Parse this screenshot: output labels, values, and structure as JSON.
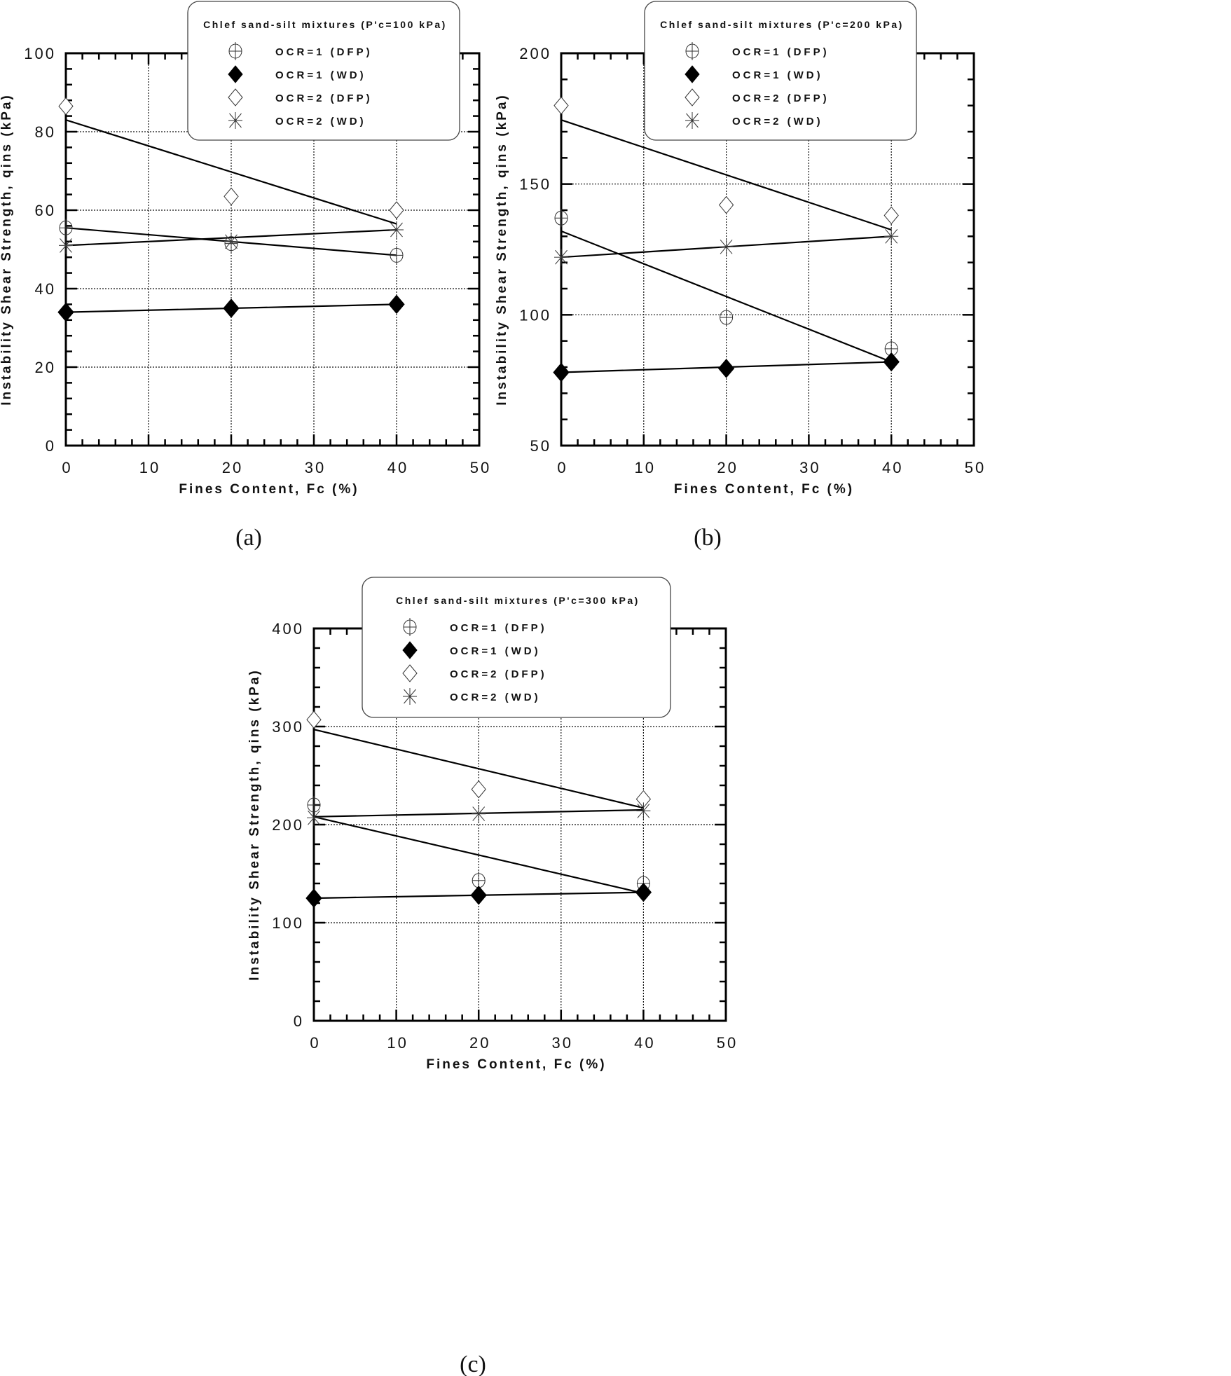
{
  "chart_data": [
    {
      "type": "scatter",
      "caption": "(a)",
      "legend_title": "Chlef sand-silt mixtures (P'c=100 kPa)",
      "legend_placement": "top-center",
      "xlabel": "Fines Content, Fc (%)",
      "ylabel": "Instability Shear Strength, qins (kPa)",
      "xlim": [
        0,
        50
      ],
      "ylim": [
        0,
        100
      ],
      "x_ticks": [
        0,
        10,
        20,
        30,
        40,
        50
      ],
      "y_ticks": [
        0,
        20,
        40,
        60,
        80,
        100
      ],
      "x_tick_labels": [
        "0",
        "10",
        "20",
        "30",
        "40",
        "50"
      ],
      "y_tick_labels": [
        "0",
        "20",
        "40",
        "60",
        "80",
        "100"
      ],
      "grid": true,
      "series": [
        {
          "name": "OCR=1 (DFP)",
          "marker": "circle-cross",
          "x": [
            0,
            20,
            40
          ],
          "y": [
            55.5,
            51.5,
            48.5
          ],
          "trend": [
            55.5,
            48.5
          ]
        },
        {
          "name": "OCR=1 (WD)",
          "marker": "filled-diamond",
          "x": [
            0,
            20,
            40
          ],
          "y": [
            34,
            35,
            36
          ],
          "trend": [
            34,
            36
          ]
        },
        {
          "name": "OCR=2 (DFP)",
          "marker": "open-diamond",
          "x": [
            0,
            20,
            40
          ],
          "y": [
            86.5,
            63.5,
            60
          ],
          "trend": [
            83,
            56.5
          ]
        },
        {
          "name": "OCR=2 (WD)",
          "marker": "asterisk",
          "x": [
            0,
            20,
            40
          ],
          "y": [
            51,
            52,
            55
          ],
          "trend": [
            51,
            55
          ]
        }
      ]
    },
    {
      "type": "scatter",
      "caption": "(b)",
      "legend_title": "Chlef sand-silt mixtures (P'c=200 kPa)",
      "legend_placement": "top-center",
      "xlabel": "Fines Content, Fc (%)",
      "ylabel": "Instability Shear Strength, qins (kPa)",
      "xlim": [
        0,
        50
      ],
      "ylim": [
        50,
        200
      ],
      "x_ticks": [
        0,
        10,
        20,
        30,
        40,
        50
      ],
      "y_ticks": [
        50,
        100,
        150,
        200
      ],
      "x_tick_labels": [
        "0",
        "10",
        "20",
        "30",
        "40",
        "50"
      ],
      "y_tick_labels": [
        "50",
        "100",
        "150",
        "200"
      ],
      "grid": true,
      "series": [
        {
          "name": "OCR=1 (DFP)",
          "marker": "circle-cross",
          "x": [
            0,
            20,
            40
          ],
          "y": [
            137,
            99,
            87
          ],
          "trend": [
            132,
            82
          ]
        },
        {
          "name": "OCR=1 (WD)",
          "marker": "filled-diamond",
          "x": [
            0,
            20,
            40
          ],
          "y": [
            78,
            79.5,
            82
          ],
          "trend": [
            78,
            82
          ]
        },
        {
          "name": "OCR=2 (DFP)",
          "marker": "open-diamond",
          "x": [
            0,
            20,
            40
          ],
          "y": [
            180,
            142,
            138
          ],
          "trend": [
            174.5,
            132.5
          ]
        },
        {
          "name": "OCR=2 (WD)",
          "marker": "asterisk",
          "x": [
            0,
            20,
            40
          ],
          "y": [
            122,
            126,
            130
          ],
          "trend": [
            122,
            130
          ]
        }
      ]
    },
    {
      "type": "scatter",
      "caption": "(c)",
      "legend_title": "Chlef sand-silt mixtures (P'c=300 kPa)",
      "legend_placement": "top-center",
      "xlabel": "Fines Content, Fc (%)",
      "ylabel": "Instability Shear Strength, qins (kPa)",
      "xlim": [
        0,
        50
      ],
      "ylim": [
        0,
        400
      ],
      "x_ticks": [
        0,
        10,
        20,
        30,
        40,
        50
      ],
      "y_ticks": [
        0,
        100,
        200,
        300,
        400
      ],
      "x_tick_labels": [
        "0",
        "10",
        "20",
        "30",
        "40",
        "50"
      ],
      "y_tick_labels": [
        "0",
        "100",
        "200",
        "300",
        "400"
      ],
      "grid": true,
      "series": [
        {
          "name": "OCR=1 (DFP)",
          "marker": "circle-cross",
          "x": [
            0,
            20,
            40
          ],
          "y": [
            220,
            143,
            140
          ],
          "trend": [
            208,
            130
          ]
        },
        {
          "name": "OCR=1 (WD)",
          "marker": "filled-diamond",
          "x": [
            0,
            20,
            40
          ],
          "y": [
            125,
            128,
            131
          ],
          "trend": [
            125,
            131
          ]
        },
        {
          "name": "OCR=2 (DFP)",
          "marker": "open-diamond",
          "x": [
            0,
            20,
            40
          ],
          "y": [
            307,
            236,
            226
          ],
          "trend": [
            297,
            217
          ]
        },
        {
          "name": "OCR=2 (WD)",
          "marker": "asterisk",
          "x": [
            0,
            20,
            40
          ],
          "y": [
            207,
            211,
            214
          ],
          "trend": [
            208,
            215
          ]
        }
      ]
    }
  ]
}
